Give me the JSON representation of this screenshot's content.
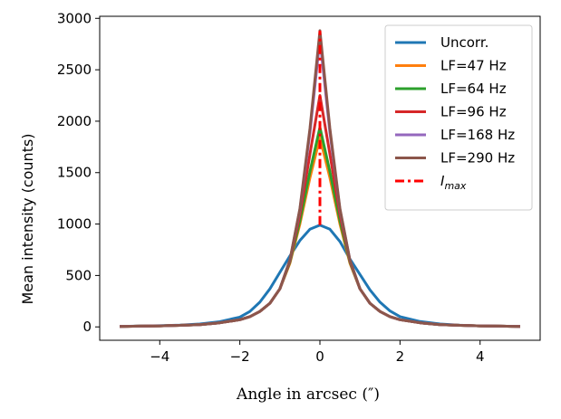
{
  "chart_data": {
    "type": "line",
    "title": "",
    "xlabel": "Angle in arcsec (″)",
    "ylabel": "Mean intensity (counts)",
    "xlim": [
      -5.5,
      5.5
    ],
    "ylim": [
      -130,
      3020
    ],
    "xticks": [
      -4,
      -2,
      0,
      2,
      4
    ],
    "yticks": [
      0,
      500,
      1000,
      1500,
      2000,
      2500,
      3000
    ],
    "xtick_labels": [
      "−4",
      "−2",
      "0",
      "2",
      "4"
    ],
    "ytick_labels": [
      "0",
      "500",
      "1000",
      "1500",
      "2000",
      "2500",
      "3000"
    ],
    "grid": false,
    "legend_position": "top-right",
    "x": [
      -5,
      -4.5,
      -4,
      -3.5,
      -3,
      -2.5,
      -2,
      -1.75,
      -1.5,
      -1.25,
      -1,
      -0.75,
      -0.5,
      -0.25,
      0,
      0.25,
      0.5,
      0.75,
      1,
      1.25,
      1.5,
      1.75,
      2,
      2.5,
      3,
      3.5,
      4,
      4.5,
      5
    ],
    "series": [
      {
        "name": "Uncorr.",
        "color": "#1f77b4",
        "values": [
          5,
          8,
          12,
          18,
          28,
          50,
          95,
          150,
          240,
          370,
          530,
          690,
          840,
          950,
          990,
          950,
          830,
          660,
          510,
          360,
          240,
          155,
          100,
          52,
          28,
          16,
          10,
          7,
          5
        ]
      },
      {
        "name": "LF=47 Hz",
        "color": "#ff7f0e",
        "values": [
          5,
          7,
          10,
          15,
          22,
          40,
          70,
          100,
          150,
          230,
          370,
          620,
          1000,
          1450,
          1840,
          1450,
          1000,
          620,
          370,
          230,
          150,
          100,
          70,
          40,
          22,
          15,
          10,
          7,
          5
        ]
      },
      {
        "name": "LF=64 Hz",
        "color": "#2ca02c",
        "values": [
          5,
          7,
          10,
          15,
          22,
          40,
          70,
          100,
          150,
          230,
          370,
          630,
          1030,
          1510,
          1940,
          1510,
          1030,
          630,
          370,
          230,
          150,
          100,
          70,
          40,
          22,
          15,
          10,
          7,
          5
        ]
      },
      {
        "name": "LF=96 Hz",
        "color": "#d62728",
        "values": [
          5,
          7,
          10,
          15,
          22,
          40,
          70,
          100,
          150,
          230,
          370,
          640,
          1090,
          1680,
          2250,
          1680,
          1090,
          640,
          370,
          230,
          150,
          100,
          70,
          40,
          22,
          15,
          10,
          7,
          5
        ]
      },
      {
        "name": "LF=168 Hz",
        "color": "#9467bd",
        "values": [
          5,
          7,
          10,
          15,
          22,
          40,
          70,
          100,
          150,
          230,
          370,
          650,
          1140,
          1890,
          2800,
          1890,
          1140,
          650,
          370,
          230,
          150,
          100,
          70,
          40,
          22,
          15,
          10,
          7,
          5
        ]
      },
      {
        "name": "LF=290 Hz",
        "color": "#8c564b",
        "values": [
          5,
          7,
          10,
          15,
          22,
          40,
          70,
          100,
          150,
          230,
          370,
          650,
          1150,
          1930,
          2880,
          1930,
          1150,
          650,
          370,
          230,
          150,
          100,
          70,
          40,
          22,
          15,
          10,
          7,
          5
        ]
      }
    ],
    "imax": {
      "label_main": "I",
      "label_sub": "max",
      "color": "#ff0000",
      "x": 0,
      "y_from": 990,
      "y_to": 2880
    }
  }
}
